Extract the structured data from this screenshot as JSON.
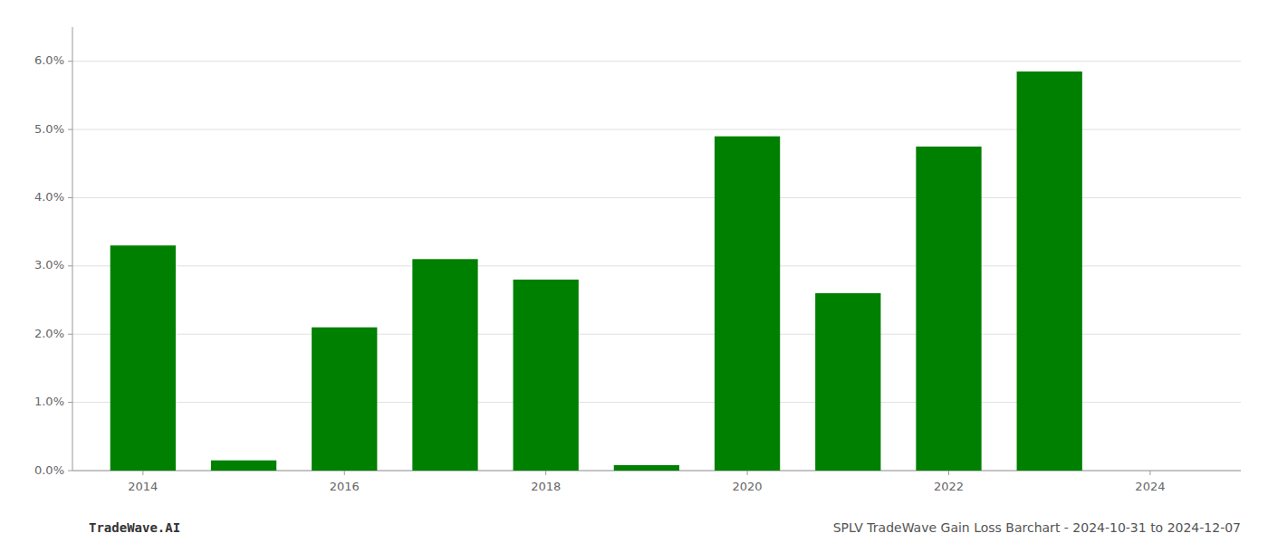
{
  "chart_data": {
    "type": "bar",
    "x": [
      2014,
      2015,
      2016,
      2017,
      2018,
      2019,
      2020,
      2021,
      2022,
      2023,
      2024
    ],
    "values": [
      0.033,
      0.0015,
      0.021,
      0.031,
      0.028,
      0.0008,
      0.049,
      0.026,
      0.0475,
      0.0585,
      0.0
    ],
    "color": "#008000",
    "xlim": [
      2013.3,
      2024.9
    ],
    "xticks": [
      2014,
      2016,
      2018,
      2020,
      2022,
      2024
    ],
    "ylim": [
      0.0,
      0.065
    ],
    "yticks": [
      {
        "value": 0.0,
        "label": "0.0%"
      },
      {
        "value": 0.01,
        "label": "1.0%"
      },
      {
        "value": 0.02,
        "label": "2.0%"
      },
      {
        "value": 0.03,
        "label": "3.0%"
      },
      {
        "value": 0.04,
        "label": "4.0%"
      },
      {
        "value": 0.05,
        "label": "5.0%"
      },
      {
        "value": 0.06,
        "label": "6.0%"
      }
    ],
    "grid": true,
    "annotations": [
      "TradeWave.AI",
      "SPLV TradeWave Gain Loss Barchart - 2024-10-31 to 2024-12-07"
    ]
  }
}
